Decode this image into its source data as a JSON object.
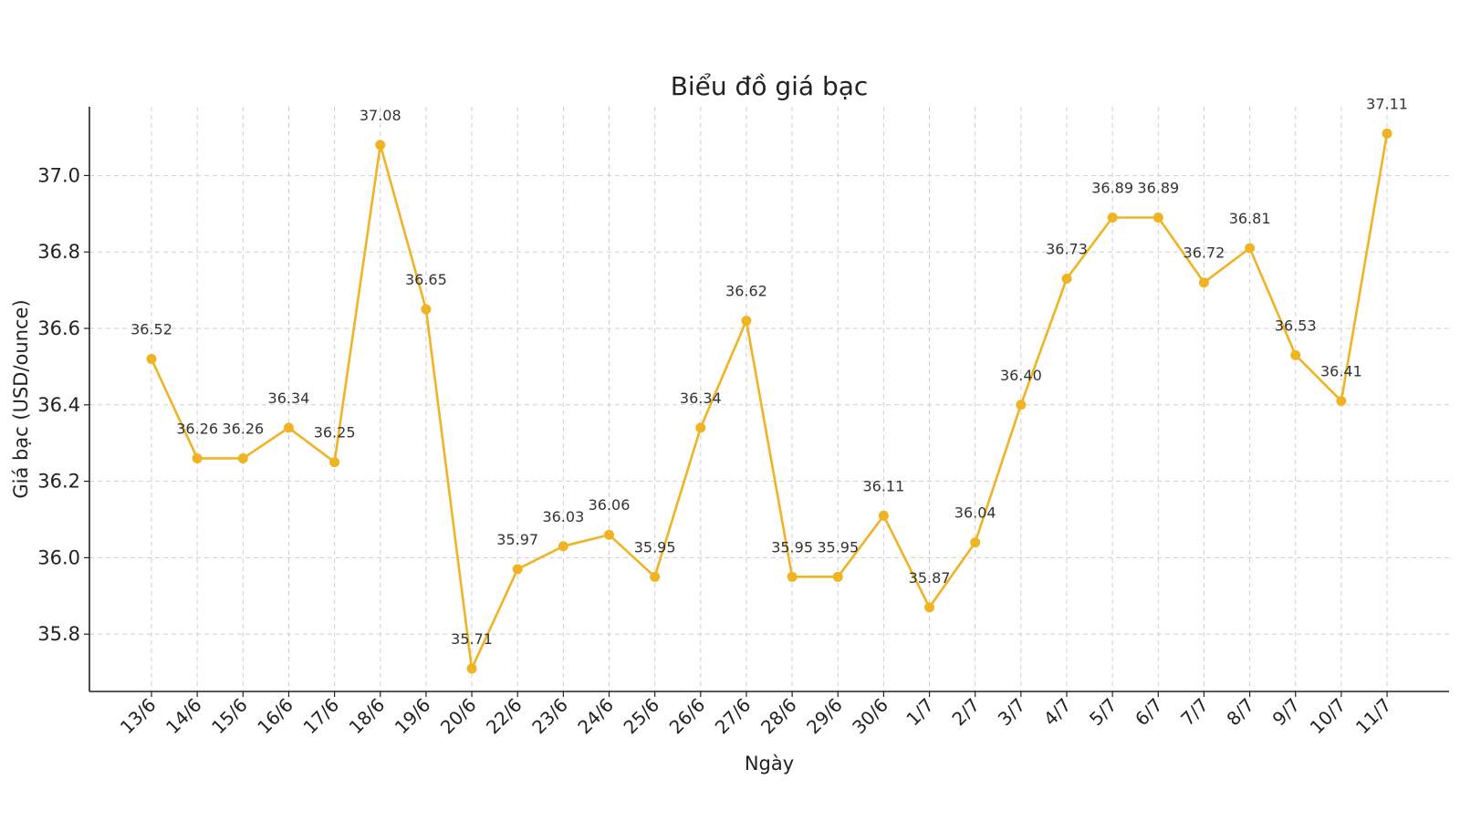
{
  "chart_data": {
    "type": "line",
    "title": "Biểu đồ giá bạc",
    "xlabel": "Ngày",
    "ylabel": "Giá bạc (USD/ounce)",
    "ylim": [
      35.65,
      37.18
    ],
    "yticks": [
      35.8,
      36.0,
      36.2,
      36.4,
      36.6,
      36.8,
      37.0
    ],
    "ytick_labels": [
      "35.8",
      "36.0",
      "36.2",
      "36.4",
      "36.6",
      "36.8",
      "37.0"
    ],
    "grid": true,
    "categories": [
      "13/6",
      "14/6",
      "15/6",
      "16/6",
      "17/6",
      "18/6",
      "19/6",
      "20/6",
      "22/6",
      "23/6",
      "24/6",
      "25/6",
      "26/6",
      "27/6",
      "28/6",
      "29/6",
      "30/6",
      "1/7",
      "2/7",
      "3/7",
      "4/7",
      "5/7",
      "6/7",
      "7/7",
      "8/7",
      "9/7",
      "10/7",
      "11/7"
    ],
    "series": [
      {
        "name": "Giá bạc",
        "color": "#f0b323",
        "values": [
          36.52,
          36.26,
          36.26,
          36.34,
          36.25,
          37.08,
          36.65,
          35.71,
          35.97,
          36.03,
          36.06,
          35.95,
          36.34,
          36.62,
          35.95,
          35.95,
          36.11,
          35.87,
          36.04,
          36.4,
          36.73,
          36.89,
          36.89,
          36.72,
          36.81,
          36.53,
          36.41,
          37.11
        ],
        "labels": [
          "36.52",
          "36.26",
          "36.26",
          "36.34",
          "36.25",
          "37.08",
          "36.65",
          "35.71",
          "35.97",
          "36.03",
          "36.06",
          "35.95",
          "36.34",
          "36.62",
          "35.95",
          "35.95",
          "36.11",
          "35.87",
          "36.04",
          "36.40",
          "36.73",
          "36.89",
          "36.89",
          "36.72",
          "36.81",
          "36.53",
          "36.41",
          "37.11"
        ]
      }
    ]
  }
}
